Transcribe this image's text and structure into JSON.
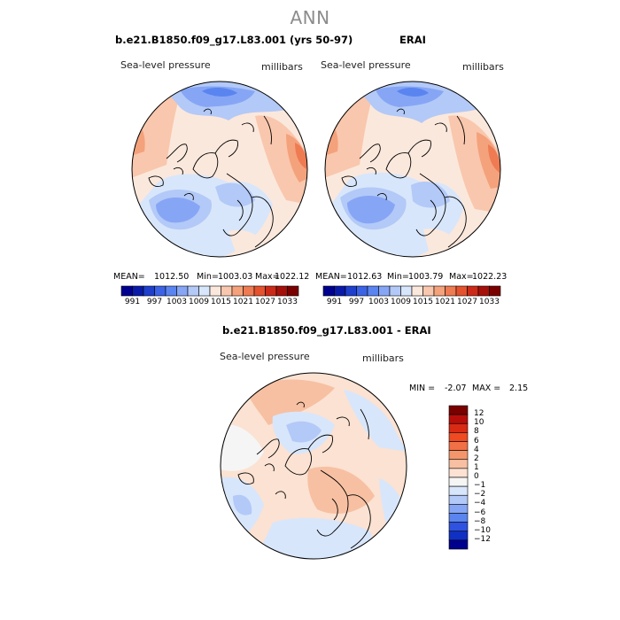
{
  "season": "ANN",
  "variable_label": "Sea-level pressure",
  "units_label": "millibars",
  "panels": {
    "model": {
      "title": "b.e21.B1850.f09_g17.L83.001 (yrs 50-97)",
      "stats": {
        "mean_label": "MEAN=",
        "mean": "1012.50",
        "min_label": "Min=",
        "min": "1003.03",
        "max_label": "Max=",
        "max": "1022.12"
      }
    },
    "obs": {
      "title": "ERAI",
      "stats": {
        "mean_label": "MEAN=",
        "mean": "1012.63",
        "min_label": "Min=",
        "min": "1003.79",
        "max_label": "Max=",
        "max": "1022.23"
      }
    },
    "diff": {
      "title": "b.e21.B1850.f09_g17.L83.001 - ERAI",
      "stats": {
        "min_label": "MIN =",
        "min": "-2.07",
        "max_label": "MAX =",
        "max": "2.15"
      }
    }
  },
  "colorbar_abs": {
    "tick_labels": [
      "991",
      "997",
      "1003",
      "1009",
      "1015",
      "1021",
      "1027",
      "1033"
    ],
    "colors": [
      "#00008f",
      "#0a1aa8",
      "#1f3fcc",
      "#3c63e6",
      "#5a85f0",
      "#86a6f5",
      "#b3c9f7",
      "#d8e6fb",
      "#fbe8dc",
      "#f9c7ad",
      "#f4a27c",
      "#ee7b52",
      "#e4532e",
      "#cc2a18",
      "#a5100a",
      "#7a0000"
    ]
  },
  "colorbar_diff": {
    "tick_labels": [
      "12",
      "10",
      "8",
      "6",
      "4",
      "2",
      "1",
      "0",
      "−1",
      "−2",
      "−4",
      "−6",
      "−8",
      "−10",
      "−12"
    ],
    "colors": [
      "#7a0000",
      "#b80e0a",
      "#d92a14",
      "#ef4a22",
      "#f27045",
      "#f4966c",
      "#f7c0a2",
      "#fbe2d2",
      "#f5f5f5",
      "#d8e6fb",
      "#b3c9f7",
      "#86a6f5",
      "#5a85f0",
      "#2f52e0",
      "#1030c4",
      "#00008f"
    ]
  },
  "chart_data": [
    {
      "type": "map",
      "projection": "north-polar-stereographic",
      "title": "b.e21.B1850.f09_g17.L83.001 (yrs 50-97)",
      "variable": "Sea-level pressure",
      "units": "millibars",
      "mean": 1012.5,
      "min": 1003.03,
      "max": 1022.12,
      "contour_levels": [
        991,
        994,
        997,
        1000,
        1003,
        1006,
        1009,
        1012,
        1015,
        1018,
        1021,
        1024,
        1027,
        1030,
        1033
      ]
    },
    {
      "type": "map",
      "projection": "north-polar-stereographic",
      "title": "ERAI",
      "variable": "Sea-level pressure",
      "units": "millibars",
      "mean": 1012.63,
      "min": 1003.79,
      "max": 1022.23,
      "contour_levels": [
        991,
        994,
        997,
        1000,
        1003,
        1006,
        1009,
        1012,
        1015,
        1018,
        1021,
        1024,
        1027,
        1030,
        1033
      ]
    },
    {
      "type": "map",
      "projection": "north-polar-stereographic",
      "title": "b.e21.B1850.f09_g17.L83.001 - ERAI",
      "variable": "Sea-level pressure",
      "units": "millibars",
      "min": -2.07,
      "max": 2.15,
      "contour_levels": [
        -12,
        -10,
        -8,
        -6,
        -4,
        -2,
        -1,
        0,
        1,
        2,
        4,
        6,
        8,
        10,
        12
      ]
    }
  ]
}
